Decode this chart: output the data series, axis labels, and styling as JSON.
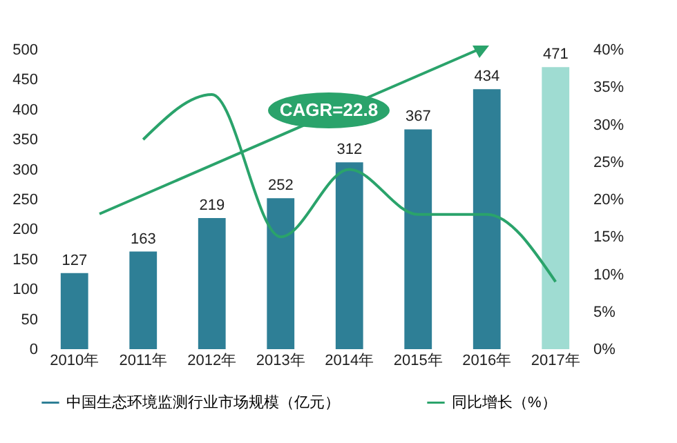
{
  "chart_data": {
    "type": "bar",
    "categories": [
      "2010年",
      "2011年",
      "2012年",
      "2013年",
      "2014年",
      "2015年",
      "2016年",
      "2017年"
    ],
    "series": [
      {
        "name": "中国生态环境监测行业市场规模（亿元）",
        "value_labels": [
          "127",
          "163",
          "219",
          "252",
          "312",
          "367",
          "434",
          "471"
        ],
        "color": "#2e7f96",
        "colors": [
          "#2e7f96",
          "#2e7f96",
          "#2e7f96",
          "#2e7f96",
          "#2e7f96",
          "#2e7f96",
          "#2e7f96",
          "#9fdcd2"
        ],
        "values": [
          127,
          163,
          219,
          252,
          312,
          367,
          434,
          471
        ]
      },
      {
        "name": "同比增长（%）",
        "type": "line",
        "axis": "y2",
        "color": "#2aa36b",
        "values": [
          null,
          28,
          34,
          15,
          24,
          18,
          18,
          9
        ]
      }
    ],
    "annotations": [
      "CAGR=22.8"
    ],
    "ylim": [
      0,
      500
    ],
    "yticks": [
      0,
      50,
      100,
      150,
      200,
      250,
      300,
      350,
      400,
      450,
      500
    ],
    "y2lim": [
      0,
      40
    ],
    "y2ticks": [
      {
        "value": 0,
        "label": "0%"
      },
      {
        "value": 5,
        "label": "5%"
      },
      {
        "value": 10,
        "label": "10%"
      },
      {
        "value": 15,
        "label": "15%"
      },
      {
        "value": 20,
        "label": "20%"
      },
      {
        "value": 25,
        "label": "25%"
      },
      {
        "value": 30,
        "label": "30%"
      },
      {
        "value": 35,
        "label": "35%"
      },
      {
        "value": 40,
        "label": "40%"
      }
    ],
    "legend": "bottom",
    "grid": false,
    "marker": "none"
  }
}
